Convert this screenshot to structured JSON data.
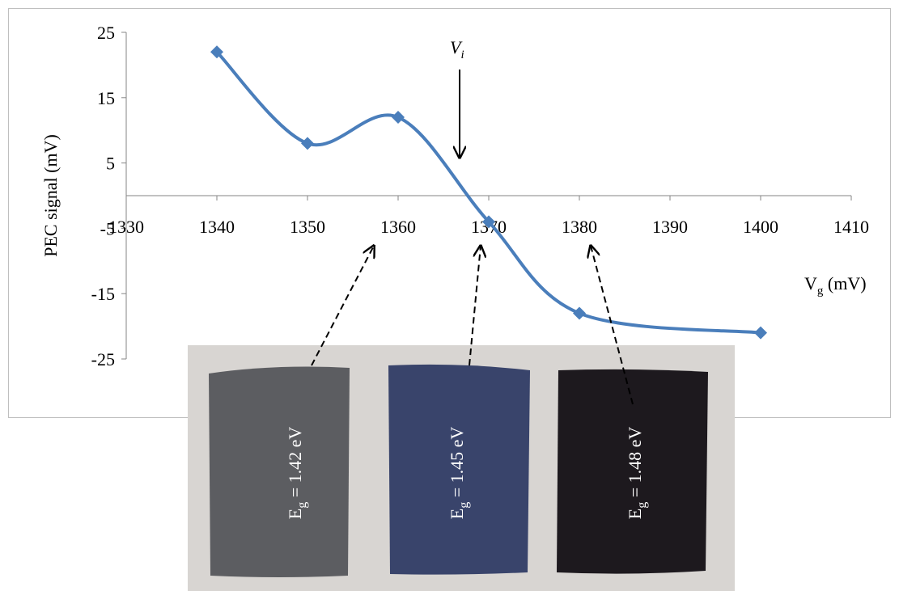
{
  "chart_data": {
    "type": "line",
    "x": [
      1340,
      1350,
      1360,
      1370,
      1380,
      1400
    ],
    "series": [
      {
        "name": "PEC signal",
        "color": "#4a7ebb",
        "values": [
          22,
          8,
          12,
          -4,
          -18,
          -21
        ]
      }
    ],
    "xlim": [
      1330,
      1410
    ],
    "xticks": [
      1330,
      1340,
      1350,
      1360,
      1370,
      1380,
      1390,
      1400,
      1410
    ],
    "ylim": [
      -25,
      25
    ],
    "yticks": [
      -25,
      -15,
      -5,
      5,
      15,
      25
    ],
    "y_label": "PEC signal (mV)",
    "x_label": {
      "main": "V",
      "sub": "g",
      "rest": " (mV)"
    },
    "annotation": {
      "main": "V",
      "sub": "i"
    },
    "samples": [
      {
        "main": "E",
        "sub": "g",
        "rest": " = 1.42 eV"
      },
      {
        "main": "E",
        "sub": "g",
        "rest": " = 1.45 eV"
      },
      {
        "main": "E",
        "sub": "g",
        "rest": " = 1.48 eV"
      }
    ]
  }
}
